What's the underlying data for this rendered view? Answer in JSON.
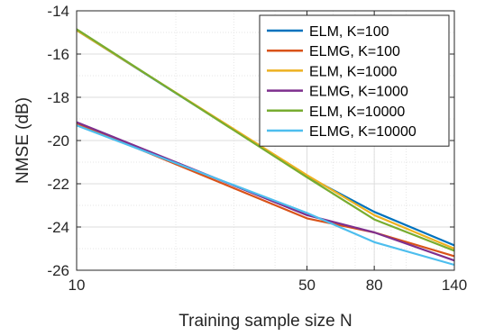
{
  "chart_data": {
    "type": "line",
    "xscale": "log",
    "xlabel": "Training sample size N",
    "ylabel": "NMSE (dB)",
    "xlim": [
      10,
      140
    ],
    "ylim": [
      -26,
      -14
    ],
    "grid": true,
    "minor_grid": true,
    "legend_position": "top-right",
    "xticks": [
      10,
      50,
      80,
      140
    ],
    "xtick_labels": [
      "10",
      "50",
      "80",
      "140"
    ],
    "yticks": [
      -14,
      -16,
      -18,
      -20,
      -22,
      -24,
      -26
    ],
    "ytick_labels": [
      "-14",
      "-16",
      "-18",
      "-20",
      "-22",
      "-24",
      "-26"
    ],
    "x": [
      10,
      50,
      80,
      140
    ],
    "series": [
      {
        "name": "ELM, K=100",
        "color": "#0072BD",
        "values": [
          -14.9,
          -21.65,
          -23.3,
          -24.85
        ]
      },
      {
        "name": "ELMG, K=100",
        "color": "#D95319",
        "values": [
          -19.2,
          -23.6,
          -24.25,
          -25.35
        ]
      },
      {
        "name": "ELM, K=1000",
        "color": "#EDB120",
        "values": [
          -14.9,
          -21.6,
          -23.45,
          -25.0
        ]
      },
      {
        "name": "ELMG, K=1000",
        "color": "#7E2F8E",
        "values": [
          -19.15,
          -23.45,
          -24.25,
          -25.55
        ]
      },
      {
        "name": "ELM, K=10000",
        "color": "#77AC30",
        "values": [
          -14.85,
          -21.7,
          -23.65,
          -25.1
        ]
      },
      {
        "name": "ELMG, K=10000",
        "color": "#4DBEEE",
        "values": [
          -19.3,
          -23.35,
          -24.7,
          -25.75
        ]
      }
    ]
  }
}
